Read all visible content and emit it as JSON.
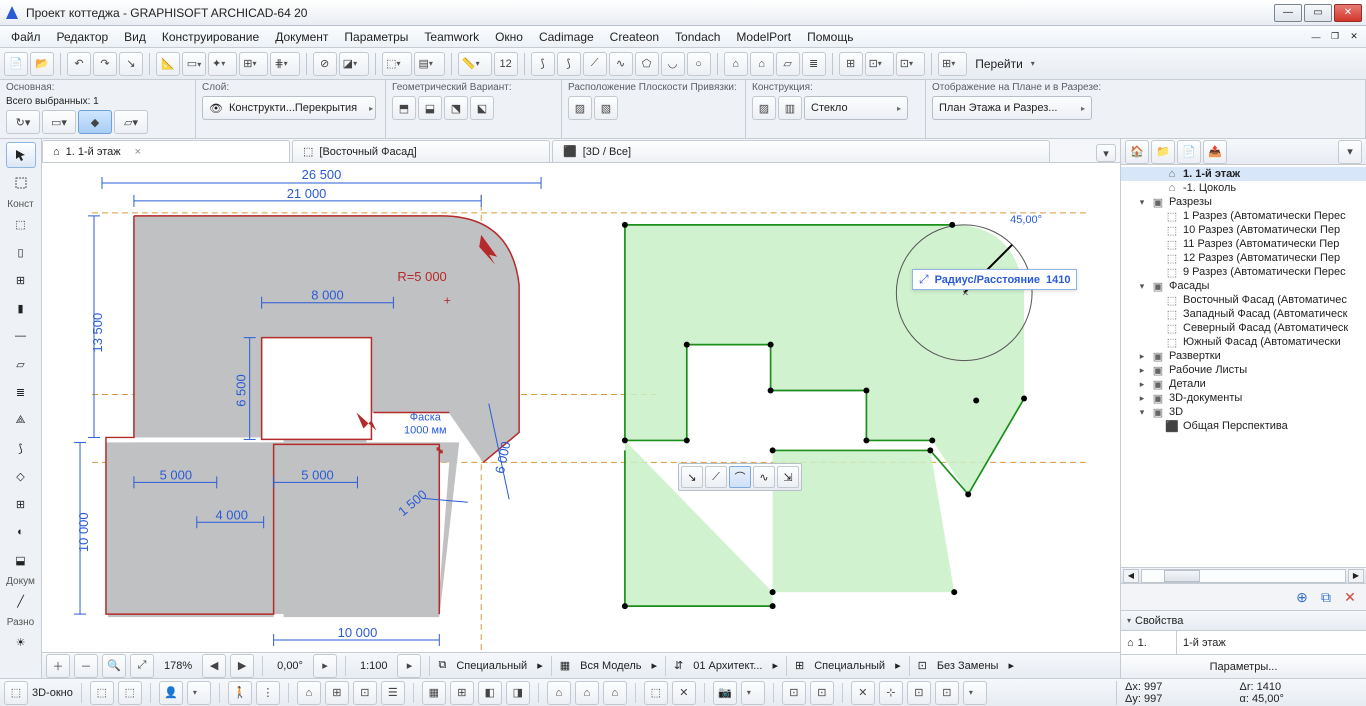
{
  "titlebar": {
    "title": "Проект коттеджа - GRAPHISOFT ARCHICAD-64 20"
  },
  "menu": [
    "Файл",
    "Редактор",
    "Вид",
    "Конструирование",
    "Документ",
    "Параметры",
    "Teamwork",
    "Окно",
    "Cadimage",
    "Createon",
    "Tondach",
    "ModelPort",
    "Помощь"
  ],
  "toolbar_right_label": "Перейти",
  "info": {
    "main_label": "Основная:",
    "selected": "Всего выбранных: 1",
    "layer_label": "Слой:",
    "layer_value": "Конструкти...Перекрытия",
    "geom_label": "Геометрический Вариант:",
    "plane_label": "Расположение Плоскости Привязки:",
    "constr_label": "Конструкция:",
    "constr_value": "Стекло",
    "display_label": "Отображение на Плане и в Разрезе:",
    "display_value": "План Этажа и Разрез..."
  },
  "tabs": [
    {
      "label": "1. 1-й этаж",
      "icon": "plan",
      "active": true
    },
    {
      "label": "[Восточный Фасад]",
      "icon": "elev"
    },
    {
      "label": "[3D / Все]",
      "icon": "3d"
    }
  ],
  "left_sections": {
    "constr": "Конст",
    "doc": "Докум",
    "misc": "Разно"
  },
  "drawing": {
    "dims": {
      "d26500": "26 500",
      "d21000": "21 000",
      "r5000": "R=5 000",
      "d8000": "8 000",
      "d13500": "13 500",
      "d6500": "6 500",
      "d5000a": "5 000",
      "d5000b": "5 000",
      "d4000": "4 000",
      "d10000a": "10 000",
      "d10000b": "10 000",
      "d6000": "6 000",
      "d1500": "1 500",
      "faska_ln1": "Фаска",
      "faska_ln2": "1000 мм"
    },
    "dim_color": "#2a5bd7",
    "outline_color": "#b52a2a",
    "fill_gray": "#c0c1c2",
    "green_fill": "#c4f0c3",
    "green_stroke": "#1a8f1a",
    "node_dot": "#000000",
    "angle_label": "45,00°",
    "hint_label": "Радиус/Расстояние",
    "hint_value": "1410"
  },
  "navigator": {
    "items": [
      {
        "l": "1. 1-й этаж",
        "ind": 2,
        "icon": "plan",
        "bold": true,
        "active": true
      },
      {
        "l": "-1. Цоколь",
        "ind": 2,
        "icon": "plan"
      },
      {
        "l": "Разрезы",
        "ind": 1,
        "icon": "folder",
        "caret": "▾"
      },
      {
        "l": "1 Разрез (Автоматически Перес",
        "ind": 2,
        "icon": "elev"
      },
      {
        "l": "10 Разрез (Автоматически Пер",
        "ind": 2,
        "icon": "elev"
      },
      {
        "l": "11 Разрез (Автоматически Пер",
        "ind": 2,
        "icon": "elev"
      },
      {
        "l": "12 Разрез (Автоматически Пер",
        "ind": 2,
        "icon": "elev"
      },
      {
        "l": "9 Разрез (Автоматически Перес",
        "ind": 2,
        "icon": "elev"
      },
      {
        "l": "Фасады",
        "ind": 1,
        "icon": "folder",
        "caret": "▾"
      },
      {
        "l": "Восточный Фасад (Автоматичес",
        "ind": 2,
        "icon": "elev"
      },
      {
        "l": "Западный Фасад (Автоматическ",
        "ind": 2,
        "icon": "elev"
      },
      {
        "l": "Северный Фасад (Автоматическ",
        "ind": 2,
        "icon": "elev"
      },
      {
        "l": "Южный Фасад (Автоматически",
        "ind": 2,
        "icon": "elev"
      },
      {
        "l": "Развертки",
        "ind": 1,
        "icon": "folder",
        "caret": "▸"
      },
      {
        "l": "Рабочие Листы",
        "ind": 1,
        "icon": "folder",
        "caret": "▸"
      },
      {
        "l": "Детали",
        "ind": 1,
        "icon": "folder",
        "caret": "▸"
      },
      {
        "l": "3D-документы",
        "ind": 1,
        "icon": "folder",
        "caret": "▸"
      },
      {
        "l": "3D",
        "ind": 1,
        "icon": "folder",
        "caret": "▾"
      },
      {
        "l": "Общая Перспектива",
        "ind": 2,
        "icon": "3d"
      }
    ],
    "props_label": "Свойства",
    "id_label": "1.",
    "name_value": "1-й этаж",
    "settings_btn": "Параметры..."
  },
  "status": {
    "zoom": "178%",
    "angle": "0,00°",
    "scale": "1:100",
    "c1": "Специальный",
    "c2": "Вся Модель",
    "c3": "01 Архитект...",
    "c4": "Специальный",
    "c5": "Без Замены",
    "footer_left": "3D-окно",
    "dx": "Δx: 997",
    "dy": "Δy: 997",
    "dr": "Δr: 1410",
    "da": "α: 45,00°"
  }
}
